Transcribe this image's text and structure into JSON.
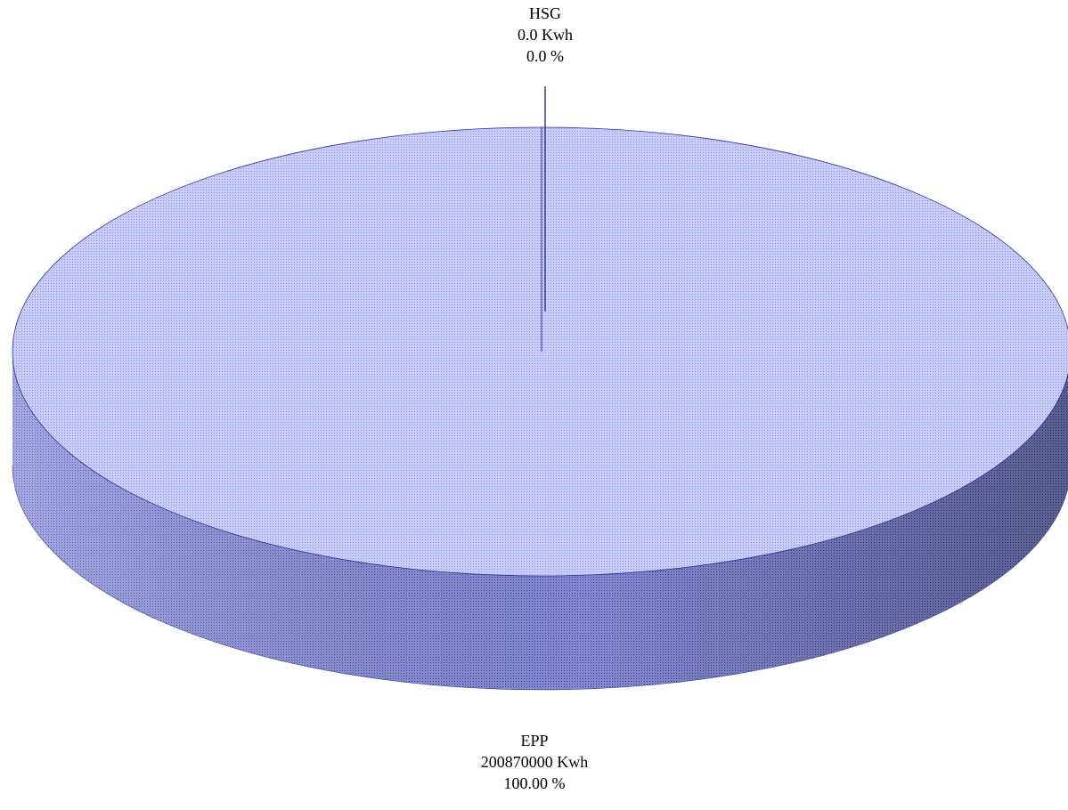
{
  "chart_data": {
    "type": "pie",
    "title": "",
    "style": "3d",
    "slices": [
      {
        "name": "EPP",
        "value": 200870000,
        "value_label": "200870000 Kwh",
        "percent_label": "100.00 %"
      },
      {
        "name": "HSG",
        "value": 0.0,
        "value_label": "0.0 Kwh",
        "percent_label": "0.0 %"
      }
    ],
    "colors": {
      "top": "#c8cdf7",
      "top_pattern": "#8f96e6",
      "side": "#8a90dc",
      "side_pattern": "#3c4293",
      "outline": "#2a2f9a",
      "leader_line": "#2a2f9a"
    }
  }
}
